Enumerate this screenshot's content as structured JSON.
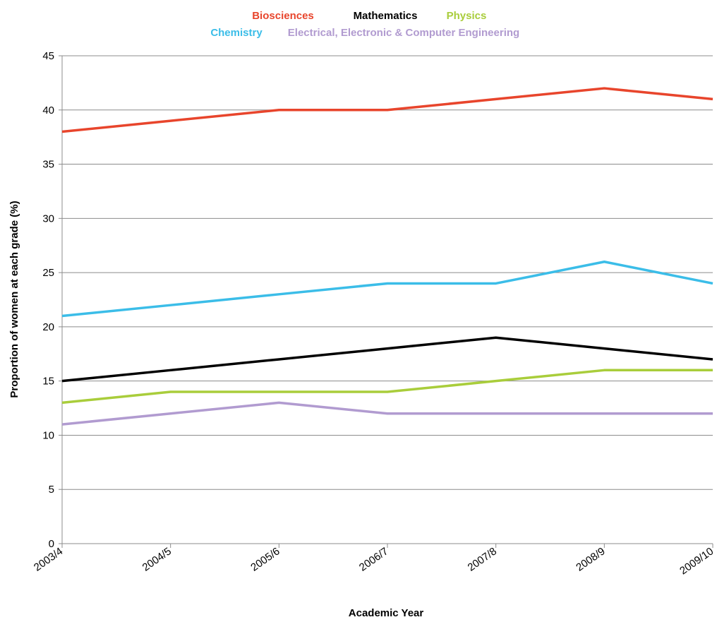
{
  "chart_data": {
    "type": "line",
    "title": "",
    "xlabel": "Academic Year",
    "ylabel": "Proportion of women at each grade (%)",
    "ylim": [
      0,
      45
    ],
    "yticks": [
      0,
      5,
      10,
      15,
      20,
      25,
      30,
      35,
      40,
      45
    ],
    "grid": true,
    "legend_position": "top",
    "categories": [
      "2003/4",
      "2004/5",
      "2005/6",
      "2006/7",
      "2007/8",
      "2008/9",
      "2009/10"
    ],
    "series": [
      {
        "name": "Biosciences",
        "color": "#e8452c",
        "values": [
          38,
          39,
          40,
          40,
          41,
          42,
          41
        ]
      },
      {
        "name": "Mathematics",
        "color": "#000000",
        "values": [
          15,
          16,
          17,
          18,
          19,
          18,
          17
        ]
      },
      {
        "name": "Physics",
        "color": "#a9cd3b",
        "values": [
          13,
          14,
          14,
          14,
          15,
          16,
          16
        ]
      },
      {
        "name": "Chemistry",
        "color": "#3bbde8",
        "values": [
          21,
          22,
          23,
          24,
          24,
          26,
          24
        ]
      },
      {
        "name": "Electrical, Electronic & Computer Engineering",
        "color": "#b19bd0",
        "values": [
          11,
          12,
          13,
          12,
          12,
          12,
          12
        ]
      }
    ]
  }
}
